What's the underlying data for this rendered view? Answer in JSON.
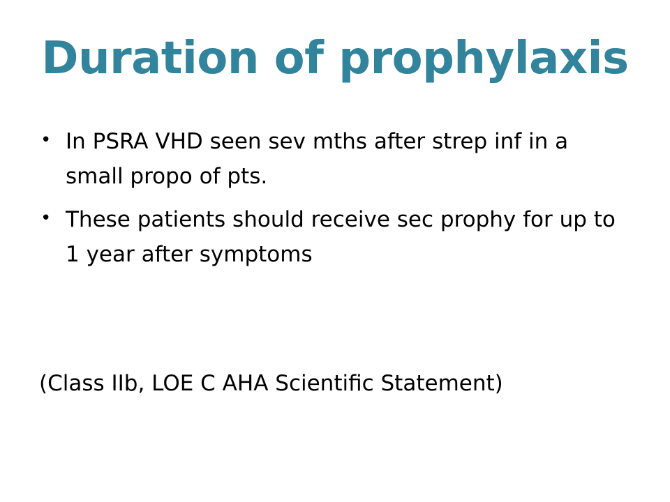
{
  "slide": {
    "title": "Duration of prophylaxis",
    "title_color": "#31849b",
    "bullet_glyph": "•",
    "bullets": [
      {
        "text": "In PSRA VHD seen sev mths after strep inf in a small propo of pts."
      },
      {
        "text": "These patients should receive sec prophy for up to 1 year after symptoms"
      }
    ],
    "reference": "(Class IIb, LOE C AHA Scientific Statement)"
  }
}
